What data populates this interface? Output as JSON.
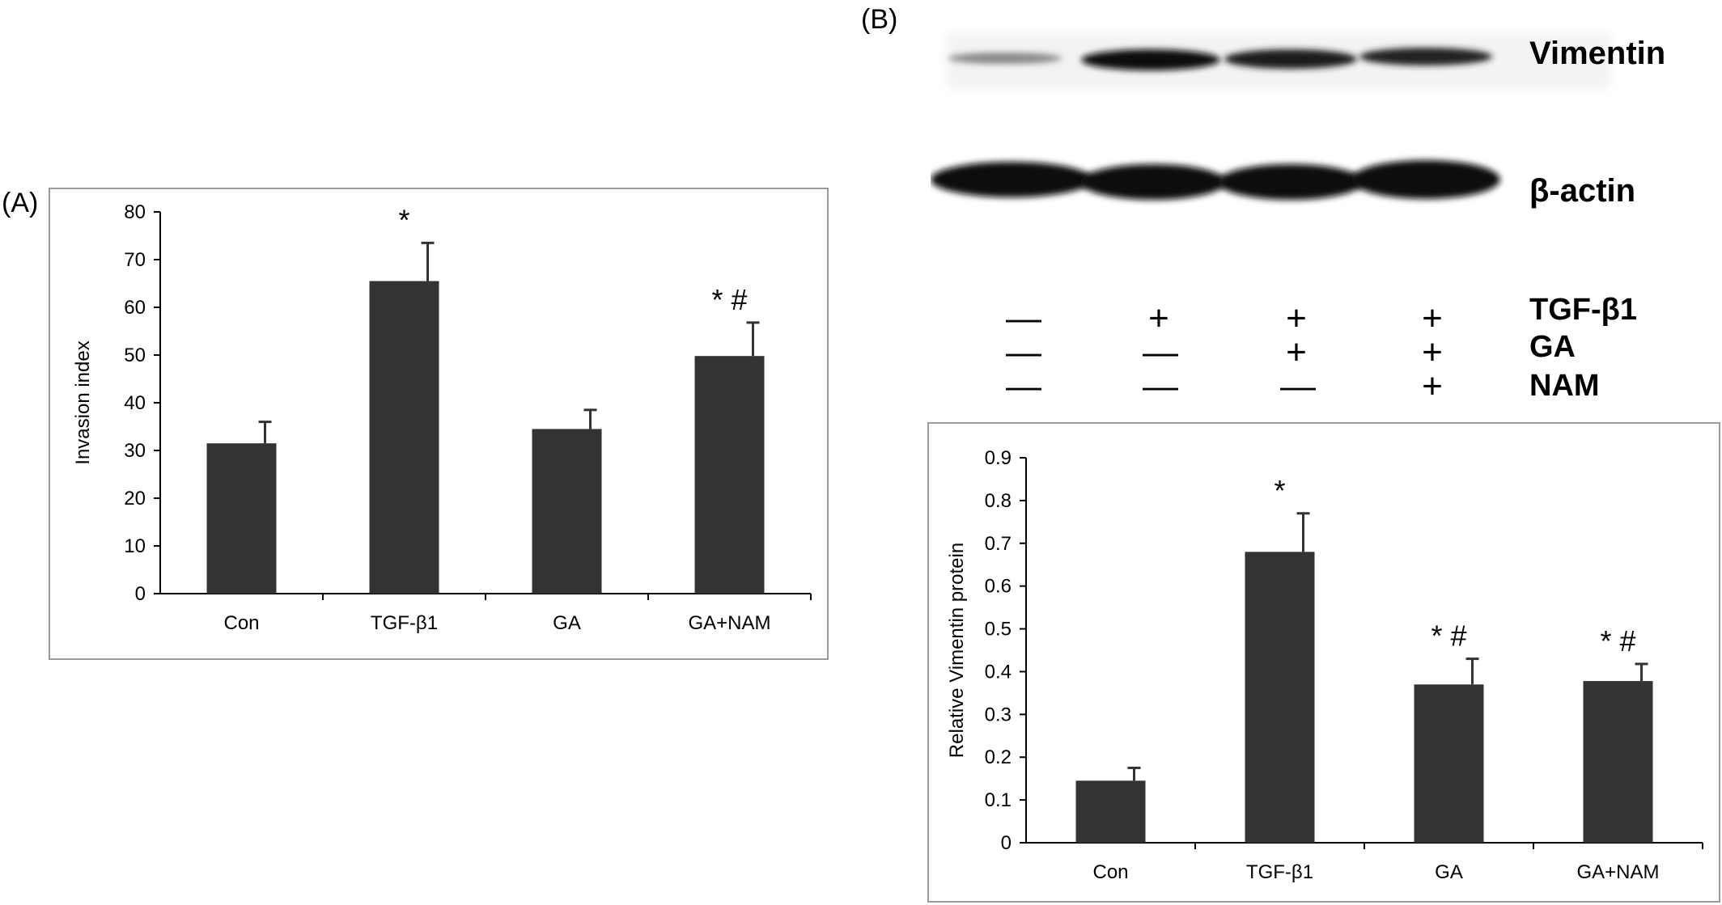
{
  "panel_a_label": "(A)",
  "panel_b_label": "(B)",
  "blot": {
    "rows": [
      "Vimentin",
      "β-actin"
    ]
  },
  "treatments": {
    "rows": [
      {
        "name": "TGF-β1",
        "signs": [
          "—",
          "+",
          "+",
          "+"
        ]
      },
      {
        "name": "GA",
        "signs": [
          "—",
          "—",
          "+",
          "+"
        ]
      },
      {
        "name": "NAM",
        "signs": [
          "—",
          "—",
          "—",
          "+"
        ]
      }
    ]
  },
  "chart_data": [
    {
      "type": "bar",
      "categories": [
        "Con",
        "TGF-β1",
        "GA",
        "GA+NAM"
      ],
      "values": [
        31.5,
        65.5,
        34.5,
        49.8
      ],
      "errors": [
        4.5,
        8,
        4,
        7
      ],
      "annotations": [
        "",
        "*",
        "",
        "* #"
      ],
      "title": "",
      "xlabel": "",
      "ylabel": "Invasion index",
      "ylim": [
        0,
        80
      ],
      "yticks": [
        0,
        10,
        20,
        30,
        40,
        50,
        60,
        70,
        80
      ],
      "bar_color": "#333333",
      "grid": false
    },
    {
      "type": "bar",
      "categories": [
        "Con",
        "TGF-β1",
        "GA",
        "GA+NAM"
      ],
      "values": [
        0.145,
        0.68,
        0.37,
        0.378
      ],
      "errors": [
        0.03,
        0.09,
        0.06,
        0.04
      ],
      "annotations": [
        "",
        "*",
        "* #",
        "* #"
      ],
      "title": "",
      "xlabel": "",
      "ylabel": "Relative Vimentin protein",
      "ylim": [
        0,
        0.9
      ],
      "yticks": [
        "0",
        "0.1",
        "0.2",
        "0.3",
        "0.4",
        "0.5",
        "0.6",
        "0.7",
        "0.8",
        "0.9"
      ],
      "bar_color": "#333333",
      "grid": false
    }
  ]
}
